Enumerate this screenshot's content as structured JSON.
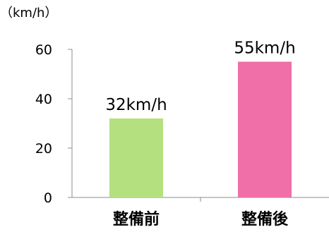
{
  "chart_data": {
    "type": "bar",
    "categories": [
      "整備前",
      "整備後"
    ],
    "values": [
      32,
      55
    ],
    "data_labels": [
      "32km/h",
      "55km/h"
    ],
    "colors": [
      "#b4e080",
      "#f06fa8"
    ],
    "yunit": "（km/h）",
    "ylim": [
      0,
      60
    ],
    "yticks": [
      0,
      20,
      40,
      60
    ],
    "title": "",
    "xlabel": "",
    "ylabel": "",
    "grid": false,
    "legend": "none"
  }
}
